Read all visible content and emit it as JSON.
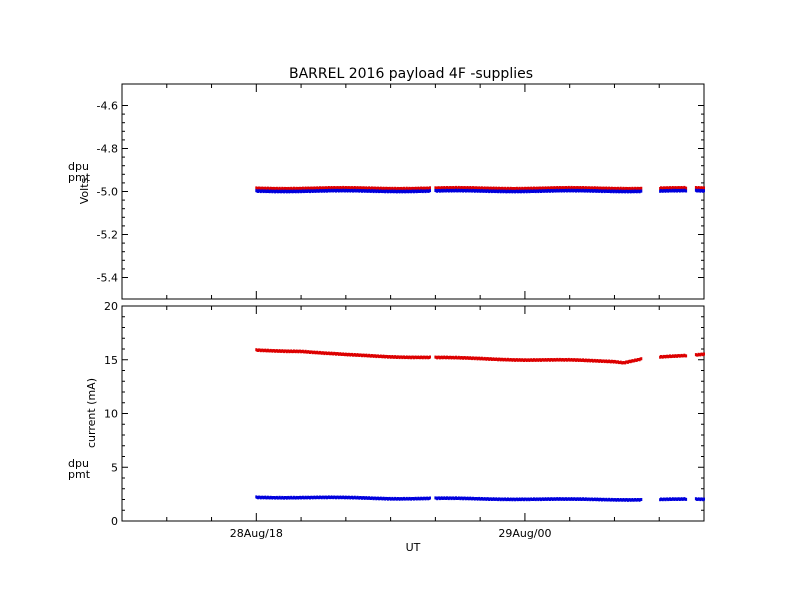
{
  "title": "BARREL 2016 payload 4F -supplies",
  "x_axis": {
    "label": "UT",
    "ticks": [
      {
        "label": "28Aug/18",
        "t": 0
      },
      {
        "label": "29Aug/00",
        "t": 6
      }
    ],
    "minor_ticks": [
      -2,
      -1,
      1,
      2,
      3,
      4,
      5,
      7,
      8,
      9
    ],
    "range_hours": [
      -3,
      10
    ]
  },
  "legend": [
    {
      "name": "dpu",
      "color": "#dd0000"
    },
    {
      "name": "pmt",
      "color": "#0000dd"
    }
  ],
  "chart_data": [
    {
      "type": "scatter",
      "panel": "voltages",
      "ylabel": "Volts",
      "ylim": [
        -5.5,
        -4.5
      ],
      "yticks": [
        -4.6,
        -4.8,
        -5.0,
        -5.2,
        -5.4
      ],
      "ytick_labels": [
        "-4.6",
        "-4.8",
        "-5.0",
        "-5.2",
        "-5.4"
      ],
      "x_unit": "hours after 28Aug/18 UT",
      "data_segments": [
        [
          0,
          3.9
        ],
        [
          4.0,
          8.6
        ],
        [
          9.0,
          9.6
        ],
        [
          9.8,
          10.0
        ]
      ],
      "series": [
        {
          "name": "dpu",
          "color": "#dd0000",
          "x": [
            0,
            10
          ],
          "y": [
            -4.985,
            -4.985
          ]
        },
        {
          "name": "pmt",
          "color": "#0000dd",
          "x": [
            0,
            10
          ],
          "y": [
            -4.998,
            -4.998
          ]
        }
      ]
    },
    {
      "type": "scatter",
      "panel": "currents",
      "ylabel": "current (mA)",
      "ylim": [
        0,
        20
      ],
      "yticks": [
        0,
        5,
        10,
        15,
        20
      ],
      "ytick_labels": [
        "0",
        "5",
        "10",
        "15",
        "20"
      ],
      "x_unit": "hours after 28Aug/18 UT",
      "data_segments": [
        [
          0,
          3.9
        ],
        [
          4.0,
          8.6
        ],
        [
          9.0,
          9.6
        ],
        [
          9.8,
          10.0
        ]
      ],
      "series": [
        {
          "name": "dpu",
          "color": "#dd0000",
          "x": [
            0,
            1,
            1.5,
            2,
            3,
            4,
            5,
            6,
            7,
            8,
            8.2,
            8.6,
            9.0,
            9.6,
            9.8,
            10
          ],
          "y": [
            15.9,
            15.8,
            15.6,
            15.45,
            15.3,
            15.2,
            15.1,
            15.0,
            14.95,
            14.85,
            14.75,
            15.1,
            15.25,
            15.35,
            15.4,
            15.5
          ]
        },
        {
          "name": "pmt",
          "color": "#0000dd",
          "x": [
            0,
            1,
            2,
            3,
            4,
            5,
            6,
            7,
            8,
            9,
            10
          ],
          "y": [
            2.2,
            2.2,
            2.15,
            2.1,
            2.1,
            2.05,
            2.05,
            2.0,
            2.0,
            2.0,
            2.0
          ]
        }
      ]
    }
  ]
}
